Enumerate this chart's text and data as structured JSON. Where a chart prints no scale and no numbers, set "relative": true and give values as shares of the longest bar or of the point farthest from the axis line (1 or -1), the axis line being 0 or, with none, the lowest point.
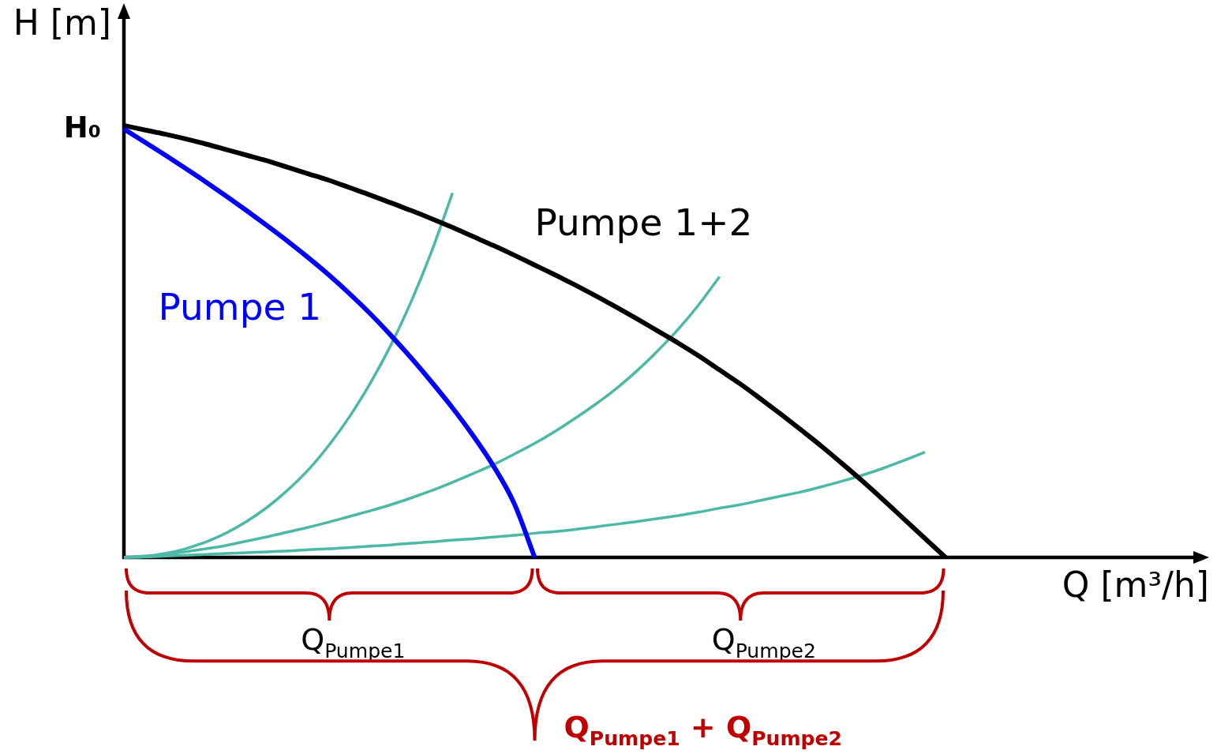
{
  "chart_data": {
    "type": "line",
    "relative": true,
    "categories": [
      null,
      null,
      null,
      null,
      null,
      null,
      null,
      null,
      null,
      null,
      null,
      null,
      null,
      null,
      null,
      null,
      null,
      null,
      null,
      null,
      null,
      null,
      null,
      null,
      null,
      null,
      null,
      null,
      null,
      null,
      null,
      null,
      null,
      null,
      null,
      null,
      null,
      null,
      null,
      null,
      null
    ],
    "series": [
      {
        "name": "Pumpe 1",
        "color": "#0000ff",
        "values": [
          0.992,
          0.962,
          0.932,
          0.901,
          0.869,
          0.836,
          0.802,
          0.767,
          0.731,
          0.693,
          0.653,
          0.61,
          0.564,
          0.514,
          0.461,
          0.405,
          0.346,
          0.282,
          0.211,
          0.125,
          0,
          null,
          null,
          null,
          null,
          null,
          null,
          null,
          null,
          null,
          null,
          null,
          null,
          null,
          null,
          null,
          null,
          null,
          null,
          null,
          null
        ]
      },
      {
        "name": "Pumpe 1+2",
        "color": "#000000",
        "values": [
          1,
          0.99,
          0.98,
          0.969,
          0.957,
          0.944,
          0.931,
          0.918,
          0.903,
          0.888,
          0.873,
          0.856,
          0.839,
          0.821,
          0.803,
          0.784,
          0.764,
          0.743,
          0.722,
          0.7,
          0.677,
          0.654,
          0.63,
          0.605,
          0.579,
          0.552,
          0.524,
          0.496,
          0.466,
          0.434,
          0.402,
          0.367,
          0.331,
          0.294,
          0.256,
          0.216,
          0.175,
          0.132,
          0.088,
          0.044,
          0
        ]
      },
      {
        "color": "#4cb8a6",
        "values": [
          0,
          0.002,
          0.009,
          0.02,
          0.036,
          0.057,
          0.084,
          0.117,
          0.157,
          0.204,
          0.261,
          0.327,
          0.404,
          0.492,
          0.594,
          0.711,
          0.844,
          null,
          null,
          null,
          null,
          null,
          null,
          null,
          null,
          null,
          null,
          null,
          null,
          null,
          null,
          null,
          null,
          null,
          null,
          null,
          null,
          null,
          null,
          null,
          null
        ]
      },
      {
        "color": "#4cb8a6",
        "values": [
          0,
          0.003,
          0.007,
          0.013,
          0.02,
          0.028,
          0.038,
          0.048,
          0.059,
          0.07,
          0.082,
          0.095,
          0.108,
          0.122,
          0.138,
          0.155,
          0.174,
          0.194,
          0.215,
          0.239,
          0.264,
          0.292,
          0.323,
          0.356,
          0.392,
          0.433,
          0.479,
          0.529,
          0.586,
          0.65,
          null,
          null,
          null,
          null,
          null,
          null,
          null,
          null,
          null,
          null,
          null
        ]
      },
      {
        "color": "#4cb8a6",
        "values": [
          0,
          0.001,
          0.003,
          0.005,
          0.007,
          0.009,
          0.011,
          0.013,
          0.015,
          0.018,
          0.02,
          0.023,
          0.026,
          0.029,
          0.033,
          0.036,
          0.04,
          0.043,
          0.047,
          0.051,
          0.056,
          0.06,
          0.065,
          0.071,
          0.077,
          0.083,
          0.09,
          0.097,
          0.105,
          0.114,
          0.122,
          0.132,
          0.142,
          0.152,
          0.164,
          0.177,
          0.191,
          0.207,
          0.225,
          0.244,
          null
        ]
      }
    ],
    "ylabel": "H [m]",
    "xlabel": "Q [m³/h]",
    "annotations": [
      "H₀",
      "Q$_{Pumpe1}$",
      "Q$_{Pumpe2}$",
      "Q$_{Pumpe1}$ + Q$_{Pumpe2}$"
    ]
  }
}
